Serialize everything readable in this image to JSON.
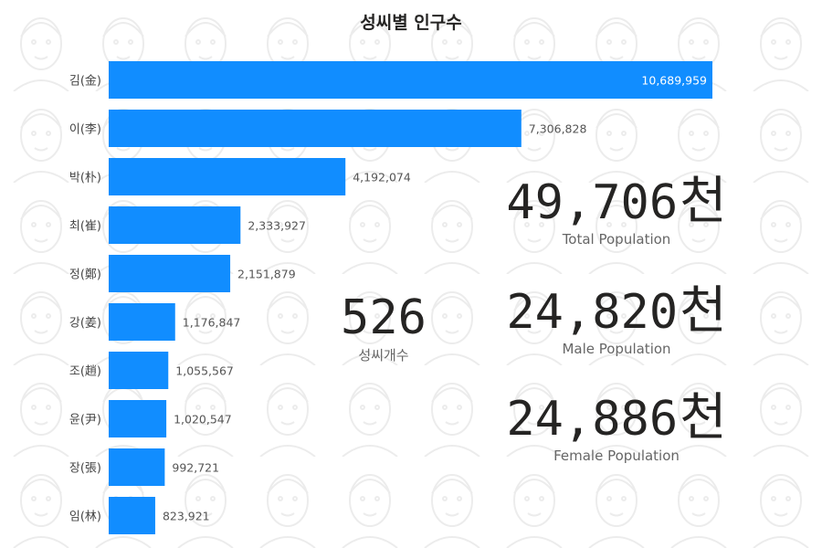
{
  "title": "성씨별 인구수",
  "chart_data": {
    "type": "bar",
    "orientation": "horizontal",
    "title": "성씨별 인구수",
    "categories": [
      "김(金)",
      "이(李)",
      "박(朴)",
      "최(崔)",
      "정(鄭)",
      "강(姜)",
      "조(趙)",
      "윤(尹)",
      "장(張)",
      "임(林)"
    ],
    "values": [
      10689959,
      7306828,
      4192074,
      2333927,
      2151879,
      1176847,
      1055567,
      1020547,
      992721,
      823921
    ],
    "value_labels": [
      "10,689,959",
      "7,306,828",
      "4,192,074",
      "2,333,927",
      "2,151,879",
      "1,176,847",
      "1,055,567",
      "1,020,547",
      "992,721",
      "823,921"
    ],
    "color": "#118DFF",
    "xlim": [
      0,
      10689959
    ]
  },
  "kpis": {
    "surname_count": {
      "value": "526",
      "label": "성씨개수"
    },
    "total": {
      "value": "49,706",
      "unit": "천",
      "label": "Total Population"
    },
    "male": {
      "value": "24,820",
      "unit": "천",
      "label": "Male Population"
    },
    "female": {
      "value": "24,886",
      "unit": "천",
      "label": "Female Population"
    }
  },
  "colors": {
    "bar": "#118DFF",
    "text_dark": "#252423",
    "text_muted": "#666666"
  }
}
